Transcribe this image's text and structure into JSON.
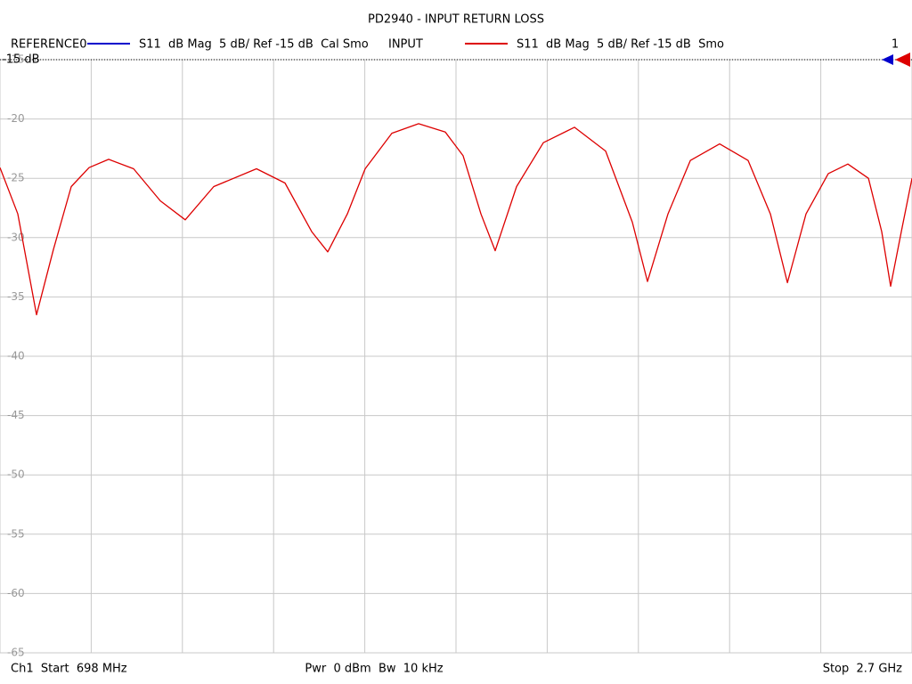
{
  "chart_data": {
    "type": "line",
    "title": "PD2940 - INPUT RETURN LOSS",
    "x": [
      698,
      737.1,
      778.2,
      815.3,
      854.4,
      893.5,
      936.5,
      991.3,
      1049.9,
      1104.7,
      1167.3,
      1261.1,
      1323.7,
      1382.3,
      1417.5,
      1460.5,
      1499.6,
      1558.3,
      1616.9,
      1675.6,
      1714.7,
      1753.8,
      1785.1,
      1832.0,
      1890.7,
      1959.1,
      2027.5,
      2086.2,
      2119.4,
      2164.4,
      2213.3,
      2277.8,
      2340.3,
      2389.2,
      2426.4,
      2467.4,
      2516.3,
      2559.3,
      2604.3,
      2633.6,
      2653.1,
      2676.6,
      2700
    ],
    "series": [
      {
        "name": "REFERENCE0",
        "color": "#0000cc",
        "label": "S11  dB Mag  5 dB/ Ref -15 dB  Cal Smo",
        "values": null
      },
      {
        "name": "INPUT",
        "color": "#dd0000",
        "label": "S11  dB Mag  5 dB/ Ref -15 dB  Smo",
        "values": [
          -24.1,
          -28.0,
          -36.5,
          -31.0,
          -25.7,
          -24.1,
          -23.4,
          -24.2,
          -26.9,
          -28.5,
          -25.7,
          -24.2,
          -25.4,
          -29.5,
          -31.2,
          -28.0,
          -24.2,
          -21.2,
          -20.4,
          -21.1,
          -23.1,
          -28.0,
          -31.1,
          -25.7,
          -22.0,
          -20.7,
          -22.7,
          -28.7,
          -33.7,
          -28.0,
          -23.5,
          -22.1,
          -23.5,
          -28.0,
          -33.8,
          -28.0,
          -24.6,
          -23.8,
          -25.0,
          -29.5,
          -34.1,
          -29.5,
          -25.0
        ]
      }
    ],
    "xlim": [
      698,
      2700
    ],
    "xgrid_divisions": 10,
    "ylim": [
      -65,
      -15
    ],
    "yticks": [
      -15,
      -20,
      -25,
      -30,
      -35,
      -40,
      -45,
      -50,
      -55,
      -60,
      -65
    ],
    "reference": {
      "value": -15,
      "label": "-15 dB",
      "channel": "1"
    },
    "grid": true,
    "footer": {
      "left": "Ch1  Start  698 MHz",
      "center": "Pwr  0 dBm  Bw  10 kHz",
      "right": "Stop  2.7 GHz"
    }
  }
}
